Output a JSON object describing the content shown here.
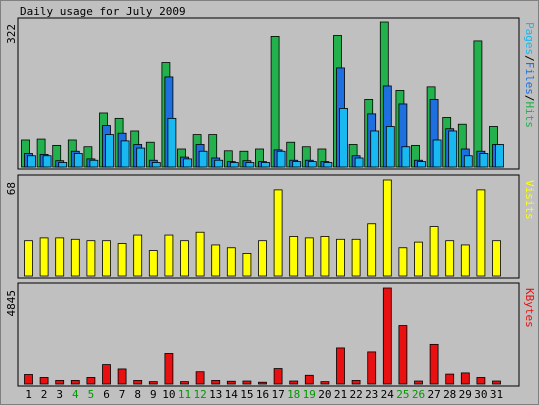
{
  "chart_data": {
    "title": "Daily usage for July 2009",
    "type": "bar",
    "categories": [
      "1",
      "2",
      "3",
      "4",
      "5",
      "6",
      "7",
      "8",
      "9",
      "10",
      "11",
      "12",
      "13",
      "14",
      "15",
      "16",
      "17",
      "18",
      "19",
      "20",
      "21",
      "22",
      "23",
      "24",
      "25",
      "26",
      "27",
      "28",
      "29",
      "30",
      "31"
    ],
    "weekend_days": [
      "4",
      "5",
      "11",
      "12",
      "18",
      "19",
      "25",
      "26"
    ],
    "colors": {
      "background": "#c0c0c0",
      "hits": "#22b14c",
      "files": "#1e6fe0",
      "pages": "#18b8f0",
      "visits": "#ffff00",
      "kbytes": "#e81010",
      "weekday_label": "#000000",
      "weekend_label": "#009900"
    },
    "panels": [
      {
        "name": "hits-files-pages",
        "ymax": 322,
        "ymax_label": "322",
        "legend": [
          {
            "text": "Pages",
            "color": "#18b8f0"
          },
          {
            "text": "/",
            "color": "#000000"
          },
          {
            "text": "Files",
            "color": "#1e6fe0"
          },
          {
            "text": "/",
            "color": "#000000"
          },
          {
            "text": "Hits",
            "color": "#22b14c"
          }
        ],
        "series": [
          {
            "name": "Hits",
            "color": "#22b14c",
            "values": [
              60,
              62,
              48,
              60,
              45,
              120,
              108,
              80,
              55,
              232,
              40,
              72,
              72,
              36,
              35,
              40,
              290,
              55,
              45,
              40,
              292,
              50,
              150,
              322,
              170,
              48,
              178,
              110,
              95,
              280,
              90
            ]
          },
          {
            "name": "Files",
            "color": "#1e6fe0",
            "values": [
              30,
              28,
              14,
              35,
              18,
              92,
              75,
              50,
              15,
              200,
              22,
              50,
              20,
              12,
              14,
              12,
              38,
              15,
              15,
              12,
              220,
              25,
              118,
              180,
              140,
              15,
              150,
              85,
              40,
              35,
              50
            ]
          },
          {
            "name": "Pages",
            "color": "#18b8f0",
            "values": [
              25,
              25,
              10,
              30,
              15,
              72,
              58,
              42,
              10,
              108,
              18,
              35,
              15,
              10,
              10,
              10,
              35,
              12,
              12,
              10,
              130,
              20,
              80,
              90,
              45,
              12,
              60,
              80,
              25,
              30,
              50
            ]
          }
        ]
      },
      {
        "name": "visits",
        "ymax": 68,
        "ymax_label": "68",
        "legend": [
          {
            "text": "Visits",
            "color": "#ffff00"
          }
        ],
        "series": [
          {
            "name": "Visits",
            "color": "#ffff00",
            "values": [
              25,
              27,
              27,
              26,
              25,
              25,
              23,
              29,
              18,
              29,
              25,
              31,
              22,
              20,
              16,
              25,
              61,
              28,
              27,
              28,
              26,
              26,
              37,
              68,
              20,
              24,
              35,
              25,
              22,
              61,
              25
            ]
          }
        ]
      },
      {
        "name": "kbytes",
        "ymax": 4845,
        "ymax_label": "4845",
        "legend": [
          {
            "text": "KBytes",
            "color": "#e81010"
          }
        ],
        "series": [
          {
            "name": "KBytes",
            "color": "#e81010",
            "values": [
              480,
              330,
              180,
              180,
              330,
              980,
              760,
              180,
              120,
              1540,
              120,
              620,
              180,
              140,
              150,
              90,
              780,
              150,
              440,
              120,
              1820,
              180,
              1620,
              4845,
              2950,
              150,
              2000,
              500,
              560,
              330,
              150
            ]
          }
        ]
      }
    ]
  }
}
